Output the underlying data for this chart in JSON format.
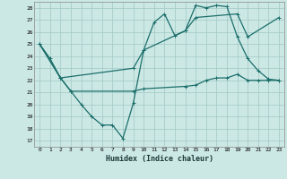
{
  "xlabel": "Humidex (Indice chaleur)",
  "background_color": "#cce8e5",
  "grid_color": "#a0c8c4",
  "line_color": "#1a6e6a",
  "xlim": [
    -0.5,
    23.5
  ],
  "ylim": [
    16.5,
    28.5
  ],
  "yticks": [
    17,
    18,
    19,
    20,
    21,
    22,
    23,
    24,
    25,
    26,
    27,
    28
  ],
  "xticks": [
    0,
    1,
    2,
    3,
    4,
    5,
    6,
    7,
    8,
    9,
    10,
    11,
    12,
    13,
    14,
    15,
    16,
    17,
    18,
    19,
    20,
    21,
    22,
    23
  ],
  "line1_x": [
    0,
    1,
    2,
    3,
    4,
    5,
    6,
    7,
    8,
    9,
    10,
    11,
    12,
    13,
    14,
    15,
    16,
    17,
    18,
    19,
    20,
    21,
    22,
    23
  ],
  "line1_y": [
    25,
    23.8,
    22.2,
    21.1,
    20.0,
    19.0,
    18.3,
    18.3,
    17.2,
    20.1,
    24.5,
    26.8,
    27.5,
    25.7,
    26.1,
    28.2,
    28.0,
    28.2,
    28.1,
    25.6,
    23.8,
    22.8,
    22.1,
    22.0
  ],
  "line2_x": [
    0,
    2,
    3,
    9,
    10,
    14,
    15,
    16,
    17,
    18,
    19,
    20,
    21,
    22,
    23
  ],
  "line2_y": [
    25,
    22.2,
    21.1,
    21.1,
    21.3,
    21.5,
    21.6,
    22.0,
    22.2,
    22.2,
    22.5,
    22.0,
    22.0,
    22.0,
    22.0
  ],
  "line3_x": [
    0,
    2,
    9,
    10,
    14,
    15,
    19,
    20,
    23
  ],
  "line3_y": [
    25,
    22.2,
    23.0,
    24.5,
    26.1,
    27.2,
    27.5,
    25.6,
    27.2
  ]
}
